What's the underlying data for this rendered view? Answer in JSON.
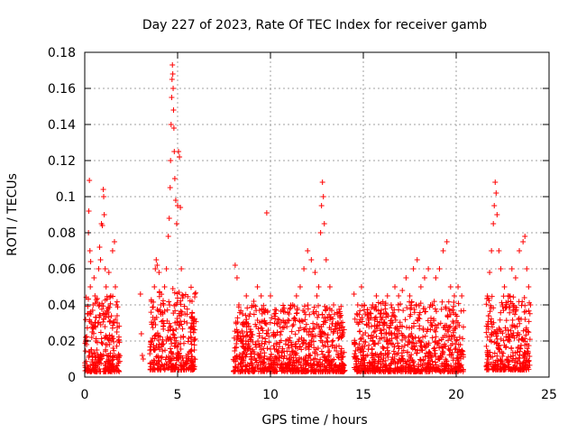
{
  "chart_data": {
    "type": "scatter",
    "title": "Day 227 of 2023, Rate Of TEC Index for receiver gamb",
    "xlabel": "GPS time / hours",
    "ylabel": "ROTI / TECUs",
    "xlim": [
      0,
      25
    ],
    "ylim": [
      0,
      0.18
    ],
    "xticks": [
      0,
      5,
      10,
      15,
      20,
      25
    ],
    "xtick_labels": [
      "0",
      "5",
      "10",
      "15",
      "20",
      "25"
    ],
    "yticks": [
      0,
      0.02,
      0.04,
      0.06,
      0.08,
      0.1,
      0.12,
      0.14,
      0.16,
      0.18
    ],
    "ytick_labels": [
      "0",
      "0.02",
      "0.04",
      "0.06",
      "0.08",
      "0.1",
      "0.12",
      "0.14",
      "0.16",
      "0.18"
    ],
    "grid": true,
    "marker": "+",
    "color": "#ff0000",
    "points": [
      [
        0.05,
        0.022
      ],
      [
        0.1,
        0.018
      ],
      [
        0.15,
        0.035
      ],
      [
        0.2,
        0.08
      ],
      [
        0.22,
        0.092
      ],
      [
        0.25,
        0.109
      ],
      [
        0.28,
        0.07
      ],
      [
        0.3,
        0.05
      ],
      [
        0.32,
        0.064
      ],
      [
        0.35,
        0.03
      ],
      [
        0.4,
        0.025
      ],
      [
        0.45,
        0.04
      ],
      [
        0.5,
        0.055
      ],
      [
        0.55,
        0.045
      ],
      [
        0.6,
        0.02
      ],
      [
        0.65,
        0.015
      ],
      [
        0.7,
        0.03
      ],
      [
        0.75,
        0.06
      ],
      [
        0.8,
        0.072
      ],
      [
        0.85,
        0.065
      ],
      [
        0.9,
        0.085
      ],
      [
        0.95,
        0.084
      ],
      [
        1.0,
        0.104
      ],
      [
        1.02,
        0.1
      ],
      [
        1.05,
        0.09
      ],
      [
        1.1,
        0.06
      ],
      [
        1.15,
        0.05
      ],
      [
        1.2,
        0.035
      ],
      [
        1.3,
        0.058
      ],
      [
        1.4,
        0.045
      ],
      [
        1.5,
        0.07
      ],
      [
        1.6,
        0.075
      ],
      [
        1.65,
        0.05
      ],
      [
        1.7,
        0.04
      ],
      [
        1.75,
        0.03
      ],
      [
        1.8,
        0.02
      ],
      [
        3.0,
        0.046
      ],
      [
        3.05,
        0.024
      ],
      [
        3.1,
        0.012
      ],
      [
        3.15,
        0.01
      ],
      [
        3.6,
        0.02
      ],
      [
        3.7,
        0.03
      ],
      [
        3.75,
        0.05
      ],
      [
        3.8,
        0.06
      ],
      [
        3.85,
        0.065
      ],
      [
        3.9,
        0.062
      ],
      [
        4.0,
        0.058
      ],
      [
        4.1,
        0.04
      ],
      [
        4.2,
        0.035
      ],
      [
        4.3,
        0.05
      ],
      [
        4.4,
        0.06
      ],
      [
        4.5,
        0.078
      ],
      [
        4.55,
        0.088
      ],
      [
        4.6,
        0.105
      ],
      [
        4.62,
        0.12
      ],
      [
        4.65,
        0.14
      ],
      [
        4.68,
        0.155
      ],
      [
        4.7,
        0.165
      ],
      [
        4.72,
        0.173
      ],
      [
        4.74,
        0.168
      ],
      [
        4.76,
        0.16
      ],
      [
        4.78,
        0.148
      ],
      [
        4.8,
        0.138
      ],
      [
        4.82,
        0.125
      ],
      [
        4.85,
        0.11
      ],
      [
        4.9,
        0.098
      ],
      [
        4.95,
        0.085
      ],
      [
        5.0,
        0.095
      ],
      [
        5.05,
        0.125
      ],
      [
        5.1,
        0.122
      ],
      [
        5.15,
        0.094
      ],
      [
        5.2,
        0.06
      ],
      [
        5.3,
        0.045
      ],
      [
        5.4,
        0.035
      ],
      [
        5.5,
        0.03
      ],
      [
        5.7,
        0.025
      ],
      [
        5.9,
        0.015
      ],
      [
        8.1,
        0.062
      ],
      [
        8.2,
        0.055
      ],
      [
        8.3,
        0.04
      ],
      [
        8.5,
        0.035
      ],
      [
        8.7,
        0.045
      ],
      [
        8.9,
        0.035
      ],
      [
        9.1,
        0.042
      ],
      [
        9.3,
        0.05
      ],
      [
        9.5,
        0.045
      ],
      [
        9.7,
        0.03
      ],
      [
        9.8,
        0.091
      ],
      [
        10.0,
        0.045
      ],
      [
        10.2,
        0.035
      ],
      [
        10.5,
        0.028
      ],
      [
        10.8,
        0.03
      ],
      [
        11.0,
        0.035
      ],
      [
        11.2,
        0.04
      ],
      [
        11.4,
        0.045
      ],
      [
        11.6,
        0.05
      ],
      [
        11.8,
        0.06
      ],
      [
        12.0,
        0.07
      ],
      [
        12.2,
        0.065
      ],
      [
        12.4,
        0.058
      ],
      [
        12.5,
        0.045
      ],
      [
        12.6,
        0.05
      ],
      [
        12.7,
        0.08
      ],
      [
        12.75,
        0.095
      ],
      [
        12.8,
        0.108
      ],
      [
        12.85,
        0.1
      ],
      [
        12.9,
        0.085
      ],
      [
        13.0,
        0.065
      ],
      [
        13.2,
        0.05
      ],
      [
        13.4,
        0.04
      ],
      [
        13.6,
        0.035
      ],
      [
        13.8,
        0.03
      ],
      [
        14.5,
        0.046
      ],
      [
        14.7,
        0.04
      ],
      [
        14.9,
        0.05
      ],
      [
        15.1,
        0.035
      ],
      [
        15.3,
        0.03
      ],
      [
        15.5,
        0.04
      ],
      [
        15.7,
        0.045
      ],
      [
        15.9,
        0.035
      ],
      [
        16.1,
        0.03
      ],
      [
        16.3,
        0.045
      ],
      [
        16.5,
        0.04
      ],
      [
        16.7,
        0.05
      ],
      [
        16.9,
        0.045
      ],
      [
        17.1,
        0.048
      ],
      [
        17.3,
        0.055
      ],
      [
        17.5,
        0.045
      ],
      [
        17.7,
        0.06
      ],
      [
        17.9,
        0.065
      ],
      [
        18.1,
        0.05
      ],
      [
        18.3,
        0.055
      ],
      [
        18.5,
        0.06
      ],
      [
        18.7,
        0.04
      ],
      [
        18.9,
        0.055
      ],
      [
        19.1,
        0.06
      ],
      [
        19.3,
        0.07
      ],
      [
        19.5,
        0.075
      ],
      [
        19.7,
        0.05
      ],
      [
        19.9,
        0.045
      ],
      [
        20.1,
        0.05
      ],
      [
        20.3,
        0.045
      ],
      [
        21.8,
        0.058
      ],
      [
        21.9,
        0.07
      ],
      [
        22.0,
        0.085
      ],
      [
        22.05,
        0.095
      ],
      [
        22.1,
        0.108
      ],
      [
        22.15,
        0.102
      ],
      [
        22.2,
        0.09
      ],
      [
        22.3,
        0.07
      ],
      [
        22.4,
        0.06
      ],
      [
        22.6,
        0.05
      ],
      [
        22.8,
        0.045
      ],
      [
        23.0,
        0.06
      ],
      [
        23.2,
        0.055
      ],
      [
        23.4,
        0.07
      ],
      [
        23.6,
        0.075
      ],
      [
        23.7,
        0.078
      ],
      [
        23.8,
        0.06
      ],
      [
        23.9,
        0.05
      ],
      [
        24.0,
        0.04
      ]
    ],
    "dense_clusters": [
      {
        "x": [
          0.0,
          1.9
        ],
        "y_min": 0.003,
        "y_max": 0.045
      },
      {
        "x": [
          3.5,
          6.0
        ],
        "y_min": 0.004,
        "y_max": 0.05
      },
      {
        "x": [
          8.0,
          14.0
        ],
        "y_min": 0.003,
        "y_max": 0.04
      },
      {
        "x": [
          14.5,
          20.4
        ],
        "y_min": 0.003,
        "y_max": 0.042
      },
      {
        "x": [
          21.6,
          24.0
        ],
        "y_min": 0.004,
        "y_max": 0.045
      }
    ]
  }
}
